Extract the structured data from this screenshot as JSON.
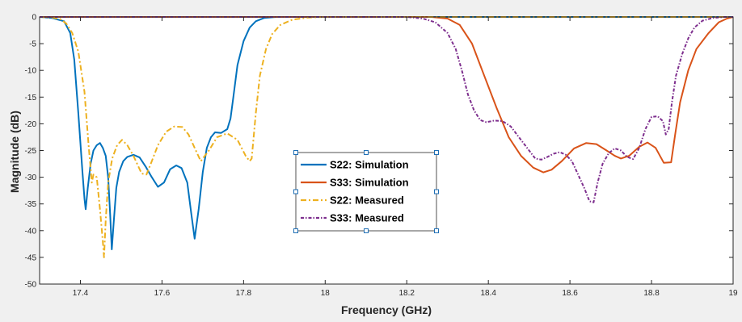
{
  "chart_data": {
    "type": "line",
    "title": "",
    "xlabel": "Frequency (GHz)",
    "ylabel": "Magnitude (dB)",
    "xlim": [
      17.3,
      19.0
    ],
    "ylim": [
      -50,
      0
    ],
    "xticks": [
      "17.4",
      "17.6",
      "17.8",
      "18",
      "18.2",
      "18.4",
      "18.6",
      "18.8",
      "19"
    ],
    "xtick_values": [
      17.4,
      17.6,
      17.8,
      18.0,
      18.2,
      18.4,
      18.6,
      18.8,
      19.0
    ],
    "yticks": [
      "0",
      "-5",
      "-10",
      "-15",
      "-20",
      "-25",
      "-30",
      "-35",
      "-40",
      "-45",
      "-50"
    ],
    "ytick_values": [
      0,
      -5,
      -10,
      -15,
      -20,
      -25,
      -30,
      -35,
      -40,
      -45,
      -50
    ],
    "grid": false,
    "legend_position": "center",
    "series": [
      {
        "name": "S22: Simulation",
        "color": "#0072bd",
        "dash": "solid",
        "points": [
          [
            17.3,
            0
          ],
          [
            17.33,
            -0.2
          ],
          [
            17.36,
            -0.8
          ],
          [
            17.375,
            -3
          ],
          [
            17.385,
            -8
          ],
          [
            17.395,
            -18
          ],
          [
            17.405,
            -29
          ],
          [
            17.41,
            -34
          ],
          [
            17.413,
            -36
          ],
          [
            17.418,
            -32
          ],
          [
            17.425,
            -27.5
          ],
          [
            17.432,
            -25
          ],
          [
            17.44,
            -24
          ],
          [
            17.448,
            -23.6
          ],
          [
            17.455,
            -24.5
          ],
          [
            17.462,
            -26
          ],
          [
            17.468,
            -30
          ],
          [
            17.473,
            -37
          ],
          [
            17.477,
            -43.5
          ],
          [
            17.482,
            -38
          ],
          [
            17.488,
            -32
          ],
          [
            17.495,
            -29
          ],
          [
            17.505,
            -27
          ],
          [
            17.515,
            -26.2
          ],
          [
            17.53,
            -25.8
          ],
          [
            17.545,
            -26.3
          ],
          [
            17.56,
            -28
          ],
          [
            17.575,
            -30
          ],
          [
            17.59,
            -31.8
          ],
          [
            17.605,
            -31
          ],
          [
            17.62,
            -28.5
          ],
          [
            17.635,
            -27.8
          ],
          [
            17.648,
            -28.3
          ],
          [
            17.662,
            -31
          ],
          [
            17.672,
            -37
          ],
          [
            17.68,
            -41.5
          ],
          [
            17.69,
            -36
          ],
          [
            17.7,
            -29
          ],
          [
            17.71,
            -24.5
          ],
          [
            17.72,
            -22.5
          ],
          [
            17.73,
            -21.6
          ],
          [
            17.745,
            -21.7
          ],
          [
            17.76,
            -21
          ],
          [
            17.768,
            -19
          ],
          [
            17.775,
            -15
          ],
          [
            17.785,
            -9
          ],
          [
            17.8,
            -4.5
          ],
          [
            17.815,
            -2
          ],
          [
            17.83,
            -0.8
          ],
          [
            17.85,
            -0.2
          ],
          [
            17.88,
            0
          ],
          [
            19.0,
            0
          ]
        ]
      },
      {
        "name": "S33: Simulation",
        "color": "#d95319",
        "dash": "solid",
        "points": [
          [
            17.3,
            0
          ],
          [
            18.26,
            0
          ],
          [
            18.3,
            -0.3
          ],
          [
            18.33,
            -1.5
          ],
          [
            18.36,
            -5
          ],
          [
            18.39,
            -11
          ],
          [
            18.42,
            -17
          ],
          [
            18.45,
            -22.5
          ],
          [
            18.48,
            -26
          ],
          [
            18.51,
            -28.2
          ],
          [
            18.535,
            -29.1
          ],
          [
            18.555,
            -28.6
          ],
          [
            18.58,
            -27
          ],
          [
            18.61,
            -24.6
          ],
          [
            18.64,
            -23.6
          ],
          [
            18.665,
            -23.8
          ],
          [
            18.69,
            -25
          ],
          [
            18.71,
            -26
          ],
          [
            18.725,
            -26.5
          ],
          [
            18.745,
            -26
          ],
          [
            18.77,
            -24.3
          ],
          [
            18.79,
            -23.5
          ],
          [
            18.81,
            -24.5
          ],
          [
            18.83,
            -27.3
          ],
          [
            18.848,
            -27.2
          ],
          [
            18.858,
            -22
          ],
          [
            18.87,
            -16
          ],
          [
            18.89,
            -10
          ],
          [
            18.91,
            -6
          ],
          [
            18.94,
            -3
          ],
          [
            18.965,
            -1
          ],
          [
            18.985,
            -0.3
          ],
          [
            19.0,
            0
          ]
        ]
      },
      {
        "name": "S22: Measured",
        "color": "#edb120",
        "dash": "7 3 2 3",
        "points": [
          [
            17.3,
            0
          ],
          [
            17.33,
            -0.1
          ],
          [
            17.35,
            -0.4
          ],
          [
            17.365,
            -1.2
          ],
          [
            17.38,
            -3
          ],
          [
            17.395,
            -6.5
          ],
          [
            17.41,
            -14
          ],
          [
            17.42,
            -24
          ],
          [
            17.428,
            -31
          ],
          [
            17.432,
            -29.5
          ],
          [
            17.44,
            -30
          ],
          [
            17.448,
            -36
          ],
          [
            17.455,
            -42
          ],
          [
            17.458,
            -45
          ],
          [
            17.462,
            -38
          ],
          [
            17.468,
            -31
          ],
          [
            17.478,
            -26.5
          ],
          [
            17.49,
            -24
          ],
          [
            17.502,
            -23
          ],
          [
            17.515,
            -24
          ],
          [
            17.53,
            -26
          ],
          [
            17.55,
            -29.3
          ],
          [
            17.562,
            -29.5
          ],
          [
            17.575,
            -27
          ],
          [
            17.59,
            -24
          ],
          [
            17.61,
            -21.5
          ],
          [
            17.63,
            -20.5
          ],
          [
            17.65,
            -20.6
          ],
          [
            17.665,
            -22
          ],
          [
            17.68,
            -24.5
          ],
          [
            17.695,
            -27
          ],
          [
            17.715,
            -25
          ],
          [
            17.735,
            -22.5
          ],
          [
            17.76,
            -21.8
          ],
          [
            17.785,
            -23
          ],
          [
            17.805,
            -26
          ],
          [
            17.815,
            -27
          ],
          [
            17.82,
            -26.5
          ],
          [
            17.83,
            -18
          ],
          [
            17.84,
            -11
          ],
          [
            17.855,
            -6
          ],
          [
            17.87,
            -3.2
          ],
          [
            17.89,
            -1.5
          ],
          [
            17.92,
            -0.5
          ],
          [
            17.96,
            -0.1
          ],
          [
            18.0,
            0
          ],
          [
            19.0,
            0
          ]
        ]
      },
      {
        "name": "S33: Measured",
        "color": "#7e2f8e",
        "dash": "4 2 1.5 2",
        "points": [
          [
            17.3,
            0
          ],
          [
            18.2,
            0
          ],
          [
            18.24,
            -0.3
          ],
          [
            18.27,
            -1
          ],
          [
            18.3,
            -3
          ],
          [
            18.32,
            -6
          ],
          [
            18.335,
            -10
          ],
          [
            18.35,
            -14.5
          ],
          [
            18.365,
            -17.5
          ],
          [
            18.38,
            -19.3
          ],
          [
            18.395,
            -19.7
          ],
          [
            18.415,
            -19.4
          ],
          [
            18.435,
            -19.5
          ],
          [
            18.455,
            -20.5
          ],
          [
            18.475,
            -22.5
          ],
          [
            18.495,
            -24.5
          ],
          [
            18.515,
            -26.5
          ],
          [
            18.53,
            -26.7
          ],
          [
            18.545,
            -26.2
          ],
          [
            18.56,
            -25.6
          ],
          [
            18.575,
            -25.3
          ],
          [
            18.59,
            -25.8
          ],
          [
            18.605,
            -27
          ],
          [
            18.62,
            -29.5
          ],
          [
            18.635,
            -32
          ],
          [
            18.648,
            -34.5
          ],
          [
            18.658,
            -34.7
          ],
          [
            18.668,
            -31
          ],
          [
            18.68,
            -27.5
          ],
          [
            18.695,
            -25.5
          ],
          [
            18.71,
            -24.6
          ],
          [
            18.725,
            -25
          ],
          [
            18.74,
            -26.2
          ],
          [
            18.755,
            -26.6
          ],
          [
            18.77,
            -24.5
          ],
          [
            18.785,
            -21
          ],
          [
            18.8,
            -18.7
          ],
          [
            18.815,
            -18.6
          ],
          [
            18.828,
            -19.5
          ],
          [
            18.835,
            -22
          ],
          [
            18.842,
            -21
          ],
          [
            18.85,
            -16
          ],
          [
            18.86,
            -11
          ],
          [
            18.875,
            -7
          ],
          [
            18.89,
            -4
          ],
          [
            18.905,
            -2
          ],
          [
            18.925,
            -0.7
          ],
          [
            18.95,
            -0.2
          ],
          [
            18.98,
            0
          ],
          [
            19.0,
            0
          ]
        ]
      }
    ]
  }
}
